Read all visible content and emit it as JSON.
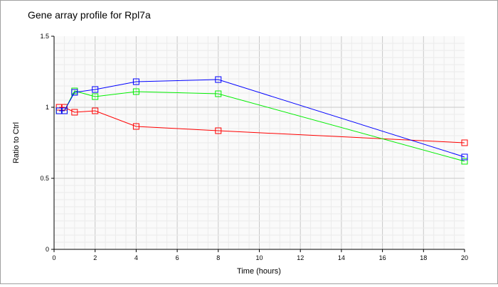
{
  "chart_data": {
    "type": "line",
    "title": "Gene array profile for Rpl7a",
    "xlabel": "Time (hours)",
    "ylabel": "Ratio to Ctrl",
    "xlim": [
      0,
      20
    ],
    "ylim": [
      0,
      1.5
    ],
    "xticks": [
      "0",
      "2",
      "4",
      "6",
      "8",
      "10",
      "12",
      "14",
      "16",
      "18",
      "20"
    ],
    "yticks": [
      "0",
      "0.5",
      "1",
      "1.5"
    ],
    "grid": true,
    "series": [
      {
        "name": "red",
        "color": "#ff0000",
        "x": [
          0.25,
          0.5,
          1,
          2,
          4,
          8,
          20
        ],
        "y": [
          1.0,
          1.0,
          0.965,
          0.975,
          0.865,
          0.835,
          0.75
        ]
      },
      {
        "name": "green",
        "color": "#00ee00",
        "x": [
          0.25,
          0.5,
          1,
          2,
          4,
          8,
          20
        ],
        "y": [
          0.975,
          0.975,
          1.115,
          1.075,
          1.11,
          1.095,
          0.62
        ]
      },
      {
        "name": "blue",
        "color": "#0000ff",
        "x": [
          0.25,
          0.5,
          1,
          2,
          4,
          8,
          20
        ],
        "y": [
          0.975,
          0.975,
          1.105,
          1.125,
          1.18,
          1.195,
          0.65
        ]
      }
    ]
  }
}
